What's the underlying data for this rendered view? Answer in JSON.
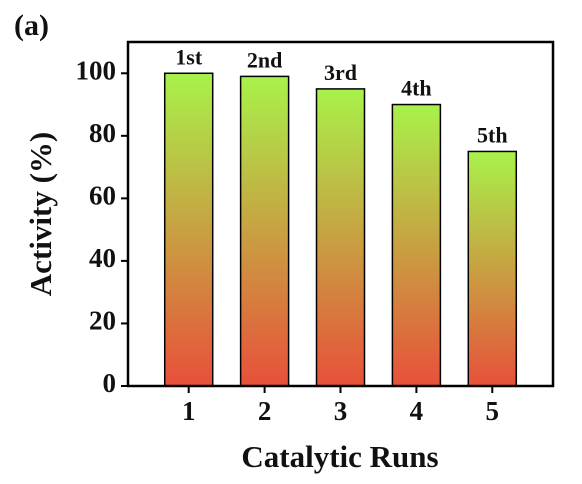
{
  "chart_data": {
    "type": "bar",
    "title": "(a)",
    "x_label": "Catalytic Runs",
    "y_label": "Activity (%)",
    "categories": [
      "1",
      "2",
      "3",
      "4",
      "5"
    ],
    "values": [
      100,
      99,
      95,
      90,
      75
    ],
    "bar_labels": [
      "1st",
      "2nd",
      "3rd",
      "4th",
      "5th"
    ],
    "gradient": [
      "#e8503a",
      "#a8f24a"
    ],
    "ylim": [
      0,
      110
    ],
    "yticks": [
      0,
      20,
      40,
      60,
      80,
      100
    ],
    "grid": false
  }
}
